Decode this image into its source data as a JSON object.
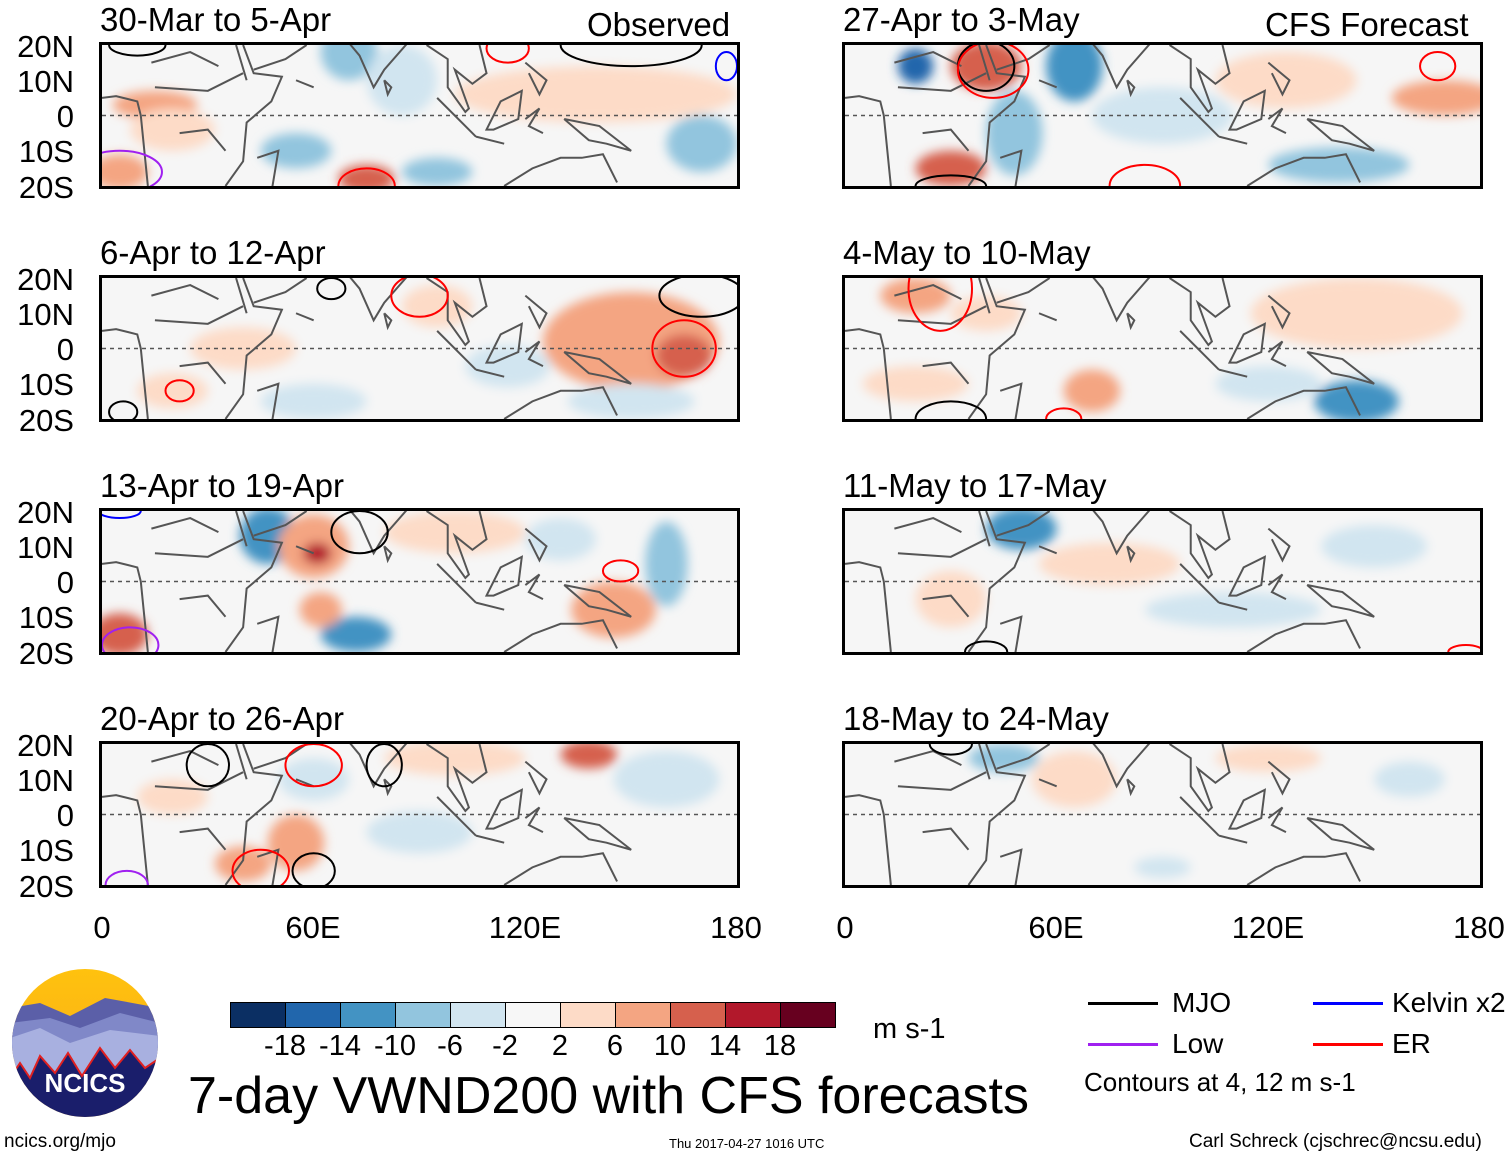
{
  "header": {
    "left_tag": "Observed",
    "right_tag": "CFS Forecast"
  },
  "panels_left": [
    {
      "title": "30-Mar to 5-Apr"
    },
    {
      "title": "6-Apr to 12-Apr"
    },
    {
      "title": "13-Apr to 19-Apr"
    },
    {
      "title": "20-Apr to 26-Apr"
    }
  ],
  "panels_right": [
    {
      "title": "27-Apr to 3-May"
    },
    {
      "title": "4-May to 10-May"
    },
    {
      "title": "11-May to 17-May"
    },
    {
      "title": "18-May to 24-May"
    }
  ],
  "lat_labels": [
    "20N",
    "10N",
    "0",
    "10S",
    "20S"
  ],
  "lon_labels": [
    "0",
    "60E",
    "120E",
    "180"
  ],
  "colorbar": {
    "labels": [
      "-18",
      "-14",
      "-10",
      "-6",
      "-2",
      "2",
      "6",
      "10",
      "14",
      "18"
    ],
    "colors": [
      "#0b2f63",
      "#2166ac",
      "#4393c3",
      "#92c5de",
      "#d1e5f0",
      "#f7f7f7",
      "#fddbc7",
      "#f4a582",
      "#d6604d",
      "#b2182b",
      "#67001f"
    ],
    "unit": "m s-1"
  },
  "title": "7-day VWND200 with CFS forecasts",
  "legend": {
    "items": [
      {
        "label": "MJO",
        "color": "#000000"
      },
      {
        "label": "Kelvin x2",
        "color": "#0000ff"
      },
      {
        "label": "Low",
        "color": "#a020f0"
      },
      {
        "label": "ER",
        "color": "#ff0000"
      }
    ],
    "note": "Contours at 4, 12 m s-1"
  },
  "logo": {
    "text": "NCICS"
  },
  "footer": {
    "url": "ncics.org/mjo",
    "timestamp": "Thu 2017-04-27 1016 UTC",
    "author": "Carl Schreck (cjschrec@ncsu.edu)"
  }
}
